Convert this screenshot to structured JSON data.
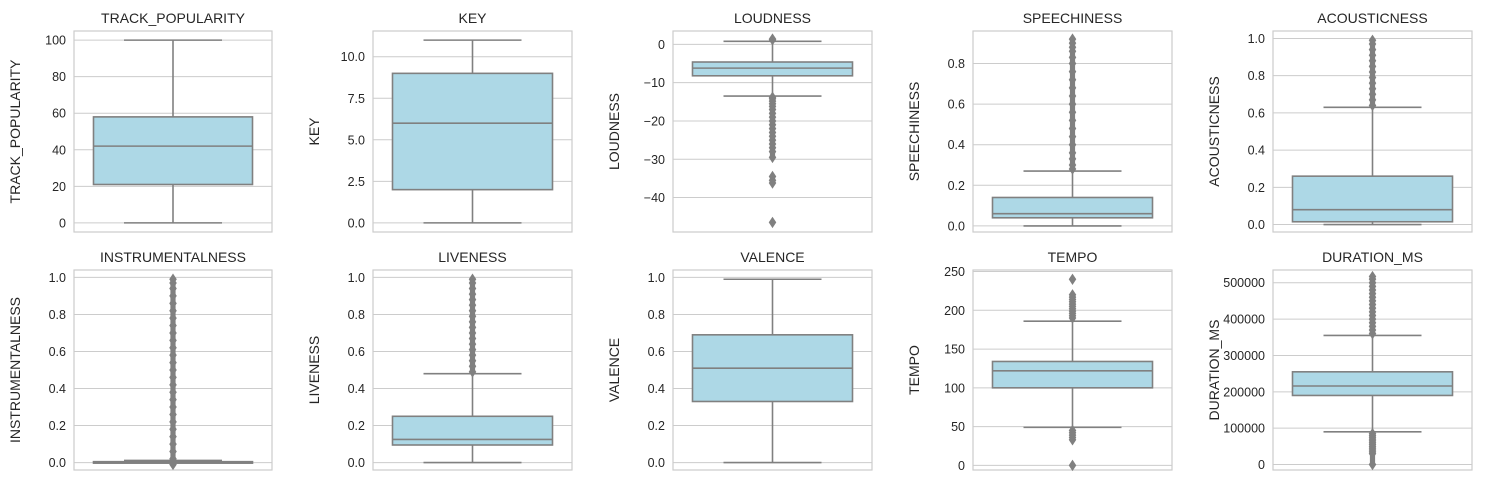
{
  "chart_data": [
    {
      "type": "box",
      "title": "TRACK_POPULARITY",
      "ylabel": "TRACK_POPULARITY",
      "ylim": [
        -5,
        105
      ],
      "yticks": [
        0,
        20,
        40,
        60,
        80,
        100
      ],
      "tick_labels": [
        "0",
        "20",
        "40",
        "60",
        "80",
        "100"
      ],
      "box": {
        "min": 0,
        "q1": 21,
        "median": 42,
        "q3": 58,
        "max": 100
      },
      "outliers": []
    },
    {
      "type": "box",
      "title": "KEY",
      "ylabel": "KEY",
      "ylim": [
        -0.55,
        11.55
      ],
      "yticks": [
        0,
        2.5,
        5,
        7.5,
        10
      ],
      "tick_labels": [
        "0.0",
        "2.5",
        "5.0",
        "7.5",
        "10.0"
      ],
      "box": {
        "min": 0,
        "q1": 2,
        "median": 6,
        "q3": 9,
        "max": 11
      },
      "outliers": []
    },
    {
      "type": "box",
      "title": "LOUDNESS",
      "ylabel": "LOUDNESS",
      "ylim": [
        -49,
        3.5
      ],
      "yticks": [
        -40,
        -30,
        -20,
        -10,
        0
      ],
      "tick_labels": [
        "−40",
        "−30",
        "−20",
        "−10",
        "0"
      ],
      "box": {
        "min": -13.5,
        "q1": -8.2,
        "median": -6.2,
        "q3": -4.6,
        "max": 0.8
      },
      "outliers": [
        1.2,
        1.4,
        -13.8,
        -14.2,
        -14.8,
        -15.5,
        -16.2,
        -17.0,
        -18.0,
        -19.0,
        -20.0,
        -21.0,
        -22.0,
        -23.0,
        -24.0,
        -25.0,
        -26.0,
        -27.0,
        -28.0,
        -29.5,
        -34.5,
        -35.5,
        -36.2,
        -46.5
      ]
    },
    {
      "type": "box",
      "title": "SPEECHINESS",
      "ylabel": "SPEECHINESS",
      "ylim": [
        -0.03,
        0.96
      ],
      "yticks": [
        0,
        0.2,
        0.4,
        0.6,
        0.8
      ],
      "tick_labels": [
        "0.0",
        "0.2",
        "0.4",
        "0.6",
        "0.8"
      ],
      "box": {
        "min": 0,
        "q1": 0.04,
        "median": 0.06,
        "q3": 0.14,
        "max": 0.27
      },
      "outliers": [
        0.28,
        0.3,
        0.33,
        0.36,
        0.4,
        0.44,
        0.48,
        0.52,
        0.56,
        0.6,
        0.64,
        0.68,
        0.72,
        0.76,
        0.8,
        0.83,
        0.86,
        0.88,
        0.9,
        0.92
      ]
    },
    {
      "type": "box",
      "title": "ACOUSTICNESS",
      "ylabel": "ACOUSTICNESS",
      "ylim": [
        -0.04,
        1.04
      ],
      "yticks": [
        0,
        0.2,
        0.4,
        0.6,
        0.8,
        1
      ],
      "tick_labels": [
        "0.0",
        "0.2",
        "0.4",
        "0.6",
        "0.8",
        "1.0"
      ],
      "box": {
        "min": 0,
        "q1": 0.015,
        "median": 0.08,
        "q3": 0.26,
        "max": 0.63
      },
      "outliers": [
        0.64,
        0.67,
        0.7,
        0.73,
        0.76,
        0.79,
        0.82,
        0.85,
        0.88,
        0.91,
        0.94,
        0.97,
        0.99
      ]
    },
    {
      "type": "box",
      "title": "INSTRUMENTALNESS",
      "ylabel": "INSTRUMENTALNESS",
      "ylim": [
        -0.04,
        1.04
      ],
      "yticks": [
        0,
        0.2,
        0.4,
        0.6,
        0.8,
        1
      ],
      "tick_labels": [
        "0.0",
        "0.2",
        "0.4",
        "0.6",
        "0.8",
        "1.0"
      ],
      "box": {
        "min": 0,
        "q1": 0,
        "median": 0,
        "q3": 0.005,
        "max": 0.012
      },
      "outliers": [
        0.02,
        0.06,
        0.1,
        0.14,
        0.18,
        0.22,
        0.26,
        0.3,
        0.34,
        0.38,
        0.42,
        0.46,
        0.5,
        0.54,
        0.58,
        0.62,
        0.66,
        0.7,
        0.74,
        0.78,
        0.82,
        0.86,
        0.9,
        0.94,
        0.97,
        0.99,
        -0.01
      ]
    },
    {
      "type": "box",
      "title": "LIVENESS",
      "ylabel": "LIVENESS",
      "ylim": [
        -0.04,
        1.04
      ],
      "yticks": [
        0,
        0.2,
        0.4,
        0.6,
        0.8,
        1
      ],
      "tick_labels": [
        "0.0",
        "0.2",
        "0.4",
        "0.6",
        "0.8",
        "1.0"
      ],
      "box": {
        "min": 0,
        "q1": 0.095,
        "median": 0.125,
        "q3": 0.25,
        "max": 0.48
      },
      "outliers": [
        0.49,
        0.52,
        0.55,
        0.58,
        0.61,
        0.64,
        0.67,
        0.7,
        0.73,
        0.76,
        0.79,
        0.82,
        0.85,
        0.88,
        0.91,
        0.94,
        0.97,
        0.99
      ]
    },
    {
      "type": "box",
      "title": "VALENCE",
      "ylabel": "VALENCE",
      "ylim": [
        -0.04,
        1.04
      ],
      "yticks": [
        0,
        0.2,
        0.4,
        0.6,
        0.8,
        1
      ],
      "tick_labels": [
        "0.0",
        "0.2",
        "0.4",
        "0.6",
        "0.8",
        "1.0"
      ],
      "box": {
        "min": 0,
        "q1": 0.33,
        "median": 0.51,
        "q3": 0.69,
        "max": 0.99
      },
      "outliers": []
    },
    {
      "type": "box",
      "title": "TEMPO",
      "ylabel": "TEMPO",
      "ylim": [
        -6,
        252
      ],
      "yticks": [
        0,
        50,
        100,
        150,
        200,
        250
      ],
      "tick_labels": [
        "0",
        "50",
        "100",
        "150",
        "200",
        "250"
      ],
      "box": {
        "min": 49,
        "q1": 100,
        "median": 122,
        "q3": 134,
        "max": 186
      },
      "outliers": [
        190,
        193,
        196,
        199,
        202,
        205,
        208,
        211,
        214,
        217,
        220,
        240,
        45,
        42,
        39,
        36,
        33,
        0
      ]
    },
    {
      "type": "box",
      "title": "DURATION_MS",
      "ylabel": "DURATION_MS",
      "ylim": [
        -15000,
        535000
      ],
      "yticks": [
        0,
        100000,
        200000,
        300000,
        400000,
        500000
      ],
      "tick_labels": [
        "0",
        "100000",
        "200000",
        "300000",
        "400000",
        "500000"
      ],
      "box": {
        "min": 90000,
        "q1": 190000,
        "median": 216000,
        "q3": 255000,
        "max": 355000
      },
      "outliers": [
        360000,
        370000,
        380000,
        390000,
        400000,
        410000,
        420000,
        430000,
        440000,
        450000,
        460000,
        470000,
        480000,
        490000,
        500000,
        510000,
        517000,
        85000,
        80000,
        75000,
        70000,
        65000,
        60000,
        55000,
        50000,
        45000,
        40000,
        35000,
        30000,
        0
      ]
    }
  ],
  "style": {
    "box_fill": "#add8e6",
    "box_edge": "#808080",
    "grid": "#cccccc",
    "axes_edge": "#cccccc",
    "text": "#262626"
  }
}
